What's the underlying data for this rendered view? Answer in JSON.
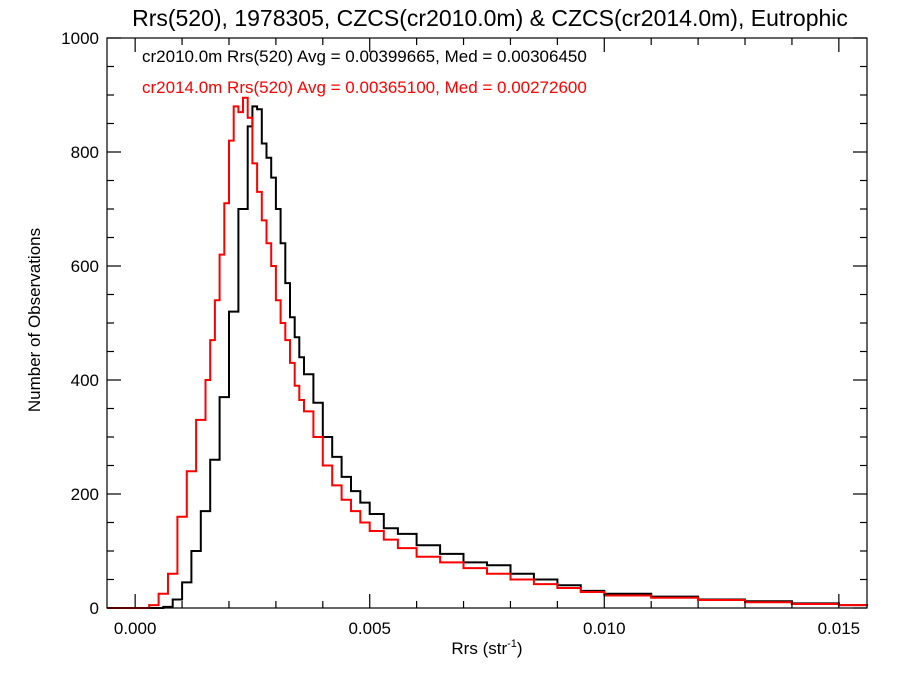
{
  "chart_data": {
    "type": "line",
    "title": "Rrs(520), 1978305, CZCS(cr2010.0m) & CZCS(cr2014.0m), Eutrophic",
    "xlabel_main": "Rrs (str",
    "xlabel_sup": "-1",
    "xlabel_close": ")",
    "ylabel": "Number of Observations",
    "xlim": [
      -0.0006,
      0.0156
    ],
    "ylim": [
      0,
      1000
    ],
    "x_ticks": [
      0.0,
      0.005,
      0.01,
      0.015
    ],
    "x_tick_labels": [
      "0.000",
      "0.005",
      "0.010",
      "0.015"
    ],
    "y_ticks": [
      0,
      200,
      400,
      600,
      800,
      1000
    ],
    "y_tick_labels": [
      "0",
      "200",
      "400",
      "600",
      "800",
      "1000"
    ],
    "series": [
      {
        "name": "cr2010.0m",
        "legend": "cr2010.0m Rrs(520) Avg = 0.00399665, Med = 0.00306450",
        "color": "#000000",
        "points": [
          [
            -0.0006,
            0
          ],
          [
            0.0002,
            0
          ],
          [
            0.0006,
            2
          ],
          [
            0.0008,
            15
          ],
          [
            0.001,
            45
          ],
          [
            0.0012,
            100
          ],
          [
            0.0014,
            170
          ],
          [
            0.0016,
            260
          ],
          [
            0.0018,
            370
          ],
          [
            0.002,
            520
          ],
          [
            0.0022,
            700
          ],
          [
            0.0024,
            845
          ],
          [
            0.0025,
            880
          ],
          [
            0.0026,
            875
          ],
          [
            0.0027,
            815
          ],
          [
            0.0028,
            790
          ],
          [
            0.0029,
            755
          ],
          [
            0.003,
            700
          ],
          [
            0.0031,
            640
          ],
          [
            0.0032,
            570
          ],
          [
            0.0033,
            510
          ],
          [
            0.0034,
            475
          ],
          [
            0.0035,
            440
          ],
          [
            0.0036,
            410
          ],
          [
            0.0038,
            360
          ],
          [
            0.004,
            300
          ],
          [
            0.0042,
            265
          ],
          [
            0.0044,
            230
          ],
          [
            0.0046,
            205
          ],
          [
            0.0048,
            185
          ],
          [
            0.005,
            165
          ],
          [
            0.0053,
            140
          ],
          [
            0.0056,
            130
          ],
          [
            0.006,
            110
          ],
          [
            0.0065,
            95
          ],
          [
            0.007,
            80
          ],
          [
            0.0075,
            75
          ],
          [
            0.008,
            60
          ],
          [
            0.0085,
            50
          ],
          [
            0.009,
            40
          ],
          [
            0.0095,
            30
          ],
          [
            0.01,
            25
          ],
          [
            0.011,
            20
          ],
          [
            0.012,
            15
          ],
          [
            0.013,
            12
          ],
          [
            0.014,
            8
          ],
          [
            0.015,
            5
          ],
          [
            0.0156,
            3
          ]
        ]
      },
      {
        "name": "cr2014.0m",
        "legend": "cr2014.0m Rrs(520) Avg = 0.00365100, Med = 0.00272600",
        "color": "#ff0000",
        "points": [
          [
            -0.0006,
            0
          ],
          [
            0.0001,
            0
          ],
          [
            0.0003,
            5
          ],
          [
            0.0005,
            25
          ],
          [
            0.0007,
            60
          ],
          [
            0.0009,
            160
          ],
          [
            0.0011,
            240
          ],
          [
            0.0013,
            330
          ],
          [
            0.0015,
            400
          ],
          [
            0.0016,
            470
          ],
          [
            0.0017,
            540
          ],
          [
            0.0018,
            620
          ],
          [
            0.0019,
            710
          ],
          [
            0.002,
            820
          ],
          [
            0.0021,
            880
          ],
          [
            0.0022,
            870
          ],
          [
            0.0023,
            895
          ],
          [
            0.0024,
            860
          ],
          [
            0.0025,
            780
          ],
          [
            0.0026,
            730
          ],
          [
            0.0027,
            680
          ],
          [
            0.0028,
            640
          ],
          [
            0.0029,
            600
          ],
          [
            0.003,
            540
          ],
          [
            0.0031,
            500
          ],
          [
            0.0032,
            470
          ],
          [
            0.0033,
            430
          ],
          [
            0.0034,
            390
          ],
          [
            0.0035,
            365
          ],
          [
            0.0036,
            345
          ],
          [
            0.0038,
            300
          ],
          [
            0.004,
            250
          ],
          [
            0.0042,
            215
          ],
          [
            0.0044,
            190
          ],
          [
            0.0046,
            170
          ],
          [
            0.0048,
            150
          ],
          [
            0.005,
            135
          ],
          [
            0.0053,
            120
          ],
          [
            0.0056,
            105
          ],
          [
            0.006,
            90
          ],
          [
            0.0065,
            80
          ],
          [
            0.007,
            70
          ],
          [
            0.0075,
            60
          ],
          [
            0.008,
            50
          ],
          [
            0.0085,
            42
          ],
          [
            0.009,
            35
          ],
          [
            0.0095,
            28
          ],
          [
            0.01,
            22
          ],
          [
            0.011,
            18
          ],
          [
            0.012,
            14
          ],
          [
            0.013,
            10
          ],
          [
            0.014,
            7
          ],
          [
            0.015,
            5
          ],
          [
            0.0156,
            3
          ]
        ]
      }
    ],
    "grid": false
  }
}
